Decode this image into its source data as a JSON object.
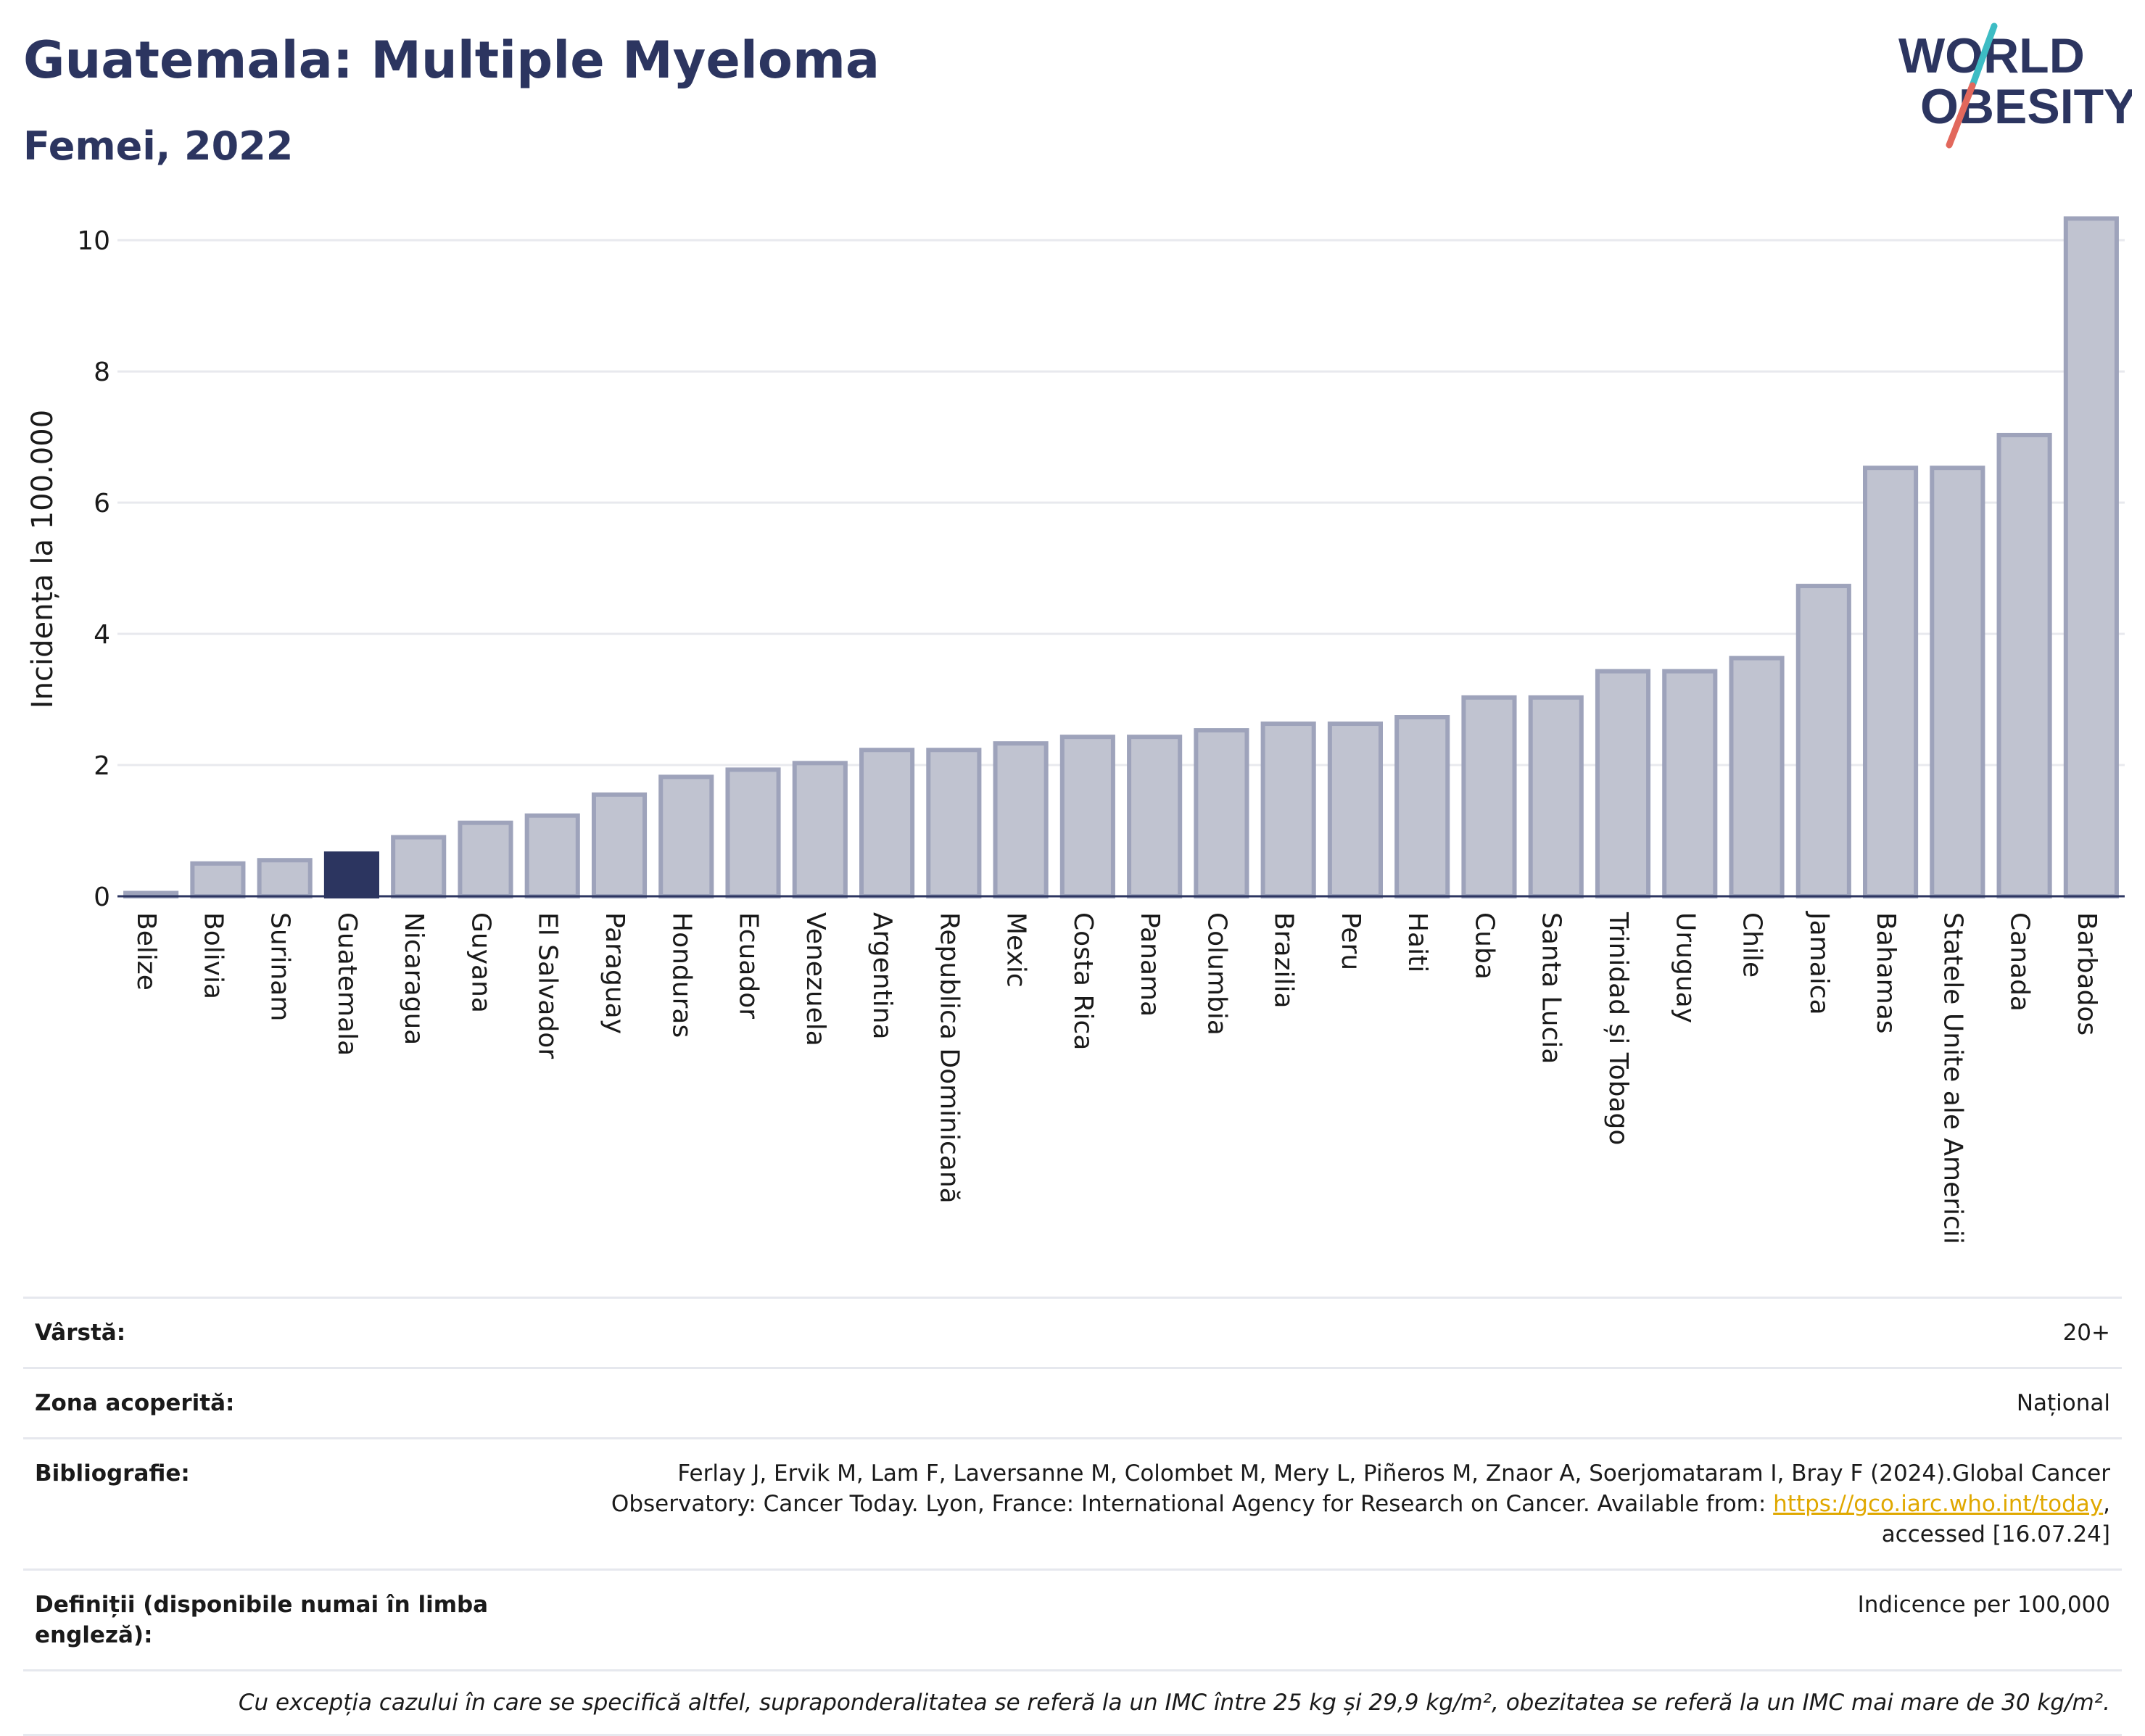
{
  "header": {
    "title": "Guatemala: Multiple Myeloma",
    "subtitle": "Femei, 2022",
    "logo_line1": "WORLD",
    "logo_line2": "OBESITY"
  },
  "colors": {
    "highlight": "#2c3560",
    "bar_fill": "#c0c3d0",
    "bar_stroke": "#9ea3bb",
    "grid": "#e8e9ee",
    "text": "#2c3560",
    "logo_teal": "#3dbcc4",
    "logo_red": "#e2685c"
  },
  "chart_data": {
    "type": "bar",
    "ylabel": "Incidența la 100.000",
    "xlabel": "",
    "ylim": [
      0,
      10.5
    ],
    "yticks": [
      0,
      2,
      4,
      6,
      8,
      10
    ],
    "grid": true,
    "highlight": "Guatemala",
    "categories": [
      "Belize",
      "Bolivia",
      "Surinam",
      "Guatemala",
      "Nicaragua",
      "Guyana",
      "El Salvador",
      "Paraguay",
      "Honduras",
      "Ecuador",
      "Venezuela",
      "Argentina",
      "Republica Dominicană",
      "Mexic",
      "Costa Rica",
      "Panama",
      "Columbia",
      "Brazilia",
      "Peru",
      "Haiti",
      "Cuba",
      "Santa Lucia",
      "Trinidad și Tobago",
      "Uruguay",
      "Chile",
      "Jamaica",
      "Bahamas",
      "Statele Unite ale Americii",
      "Canada",
      "Barbados"
    ],
    "values": [
      0.05,
      0.5,
      0.55,
      0.65,
      0.9,
      1.12,
      1.23,
      1.55,
      1.82,
      1.93,
      2.03,
      2.23,
      2.23,
      2.33,
      2.43,
      2.43,
      2.53,
      2.63,
      2.63,
      2.73,
      3.03,
      3.03,
      3.43,
      3.43,
      3.63,
      4.73,
      6.53,
      6.53,
      7.03,
      10.33
    ]
  },
  "meta": {
    "rows": [
      {
        "label": "Vârstă:",
        "value": "20+"
      },
      {
        "label": "Zona acoperită:",
        "value": "Național"
      },
      {
        "label": "Definiții (disponibile numai în limba engleză):",
        "value": "Indicence per 100,000"
      }
    ],
    "bibliography_label": "Bibliografie:",
    "bibliography_text": "Ferlay J, Ervik M, Lam F, Laversanne M, Colombet M, Mery L, Piñeros M, Znaor A, Soerjomataram I, Bray F (2024).Global Cancer Observatory: Cancer Today. Lyon, France: International Agency for Research on Cancer. Available from:",
    "bibliography_link": "https://gco.iarc.who.int/today",
    "bibliography_tail": ", accessed [16.07.24]",
    "note": "Cu excepția cazului în care se specifică altfel, supraponderalitatea se referă la un IMC între 25 kg și 29,9 kg/m², obezitatea se referă la un IMC mai mare de 30 kg/m²."
  }
}
